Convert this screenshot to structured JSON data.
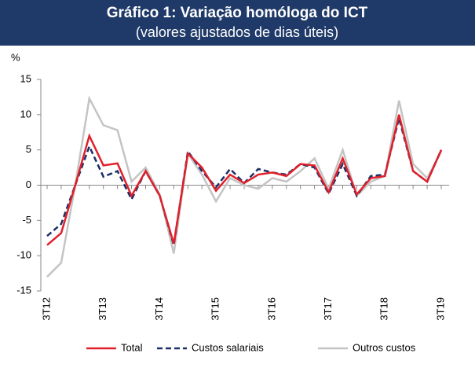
{
  "chart_data": {
    "type": "line",
    "title": "Gráfico 1: Variação homóloga do ICT",
    "subtitle": "(valores ajustados de dias úteis)",
    "y_label": "%",
    "categories": [
      "3T12",
      null,
      null,
      null,
      "3T13",
      null,
      null,
      null,
      "3T14",
      null,
      null,
      null,
      "3T15",
      null,
      null,
      null,
      "3T16",
      null,
      null,
      null,
      "3T17",
      null,
      null,
      null,
      "3T18",
      null,
      null,
      null,
      "3T19"
    ],
    "series": [
      {
        "name": "Total",
        "color": "#e0202a",
        "dash": "solid",
        "values": [
          -8.5,
          -6.8,
          0,
          7,
          2.8,
          3.1,
          -1.5,
          2.0,
          -1.5,
          -8.3,
          4.5,
          2.5,
          -0.8,
          1.5,
          0.3,
          1.5,
          1.8,
          1.3,
          3.0,
          2.8,
          -1.0,
          3.8,
          -1.3,
          1.0,
          1.3,
          10,
          2.0,
          0.5,
          5
        ]
      },
      {
        "name": "Custos salariais",
        "color": "#1b2f66",
        "dash": "dashed",
        "values": [
          -7.2,
          -5.5,
          0,
          5.5,
          1.2,
          2.0,
          -2.0,
          2.0,
          -1.5,
          -8.5,
          4.8,
          2.0,
          -0.3,
          2.3,
          0.3,
          2.3,
          1.8,
          1.5,
          3.0,
          2.5,
          -1.2,
          3.0,
          -1.5,
          1.3,
          1.5,
          9.5,
          2.0,
          0.5,
          5
        ]
      },
      {
        "name": "Outros custos",
        "color": "#c4c4c4",
        "dash": "solid",
        "values": [
          -13,
          -11,
          0,
          12.3,
          8.5,
          7.8,
          0.5,
          2.5,
          -1.3,
          -9.7,
          4.5,
          1.5,
          -2.3,
          1.0,
          0.0,
          -0.5,
          1.0,
          0.5,
          2.0,
          3.8,
          -0.5,
          5.0,
          -1.5,
          0.5,
          1.3,
          12,
          3.0,
          1.0,
          4.8
        ]
      }
    ],
    "ylim": [
      -15,
      15
    ],
    "yticks": [
      -15,
      -10,
      -5,
      0,
      5,
      10,
      15
    ],
    "grid": false,
    "legend": "bottom"
  }
}
